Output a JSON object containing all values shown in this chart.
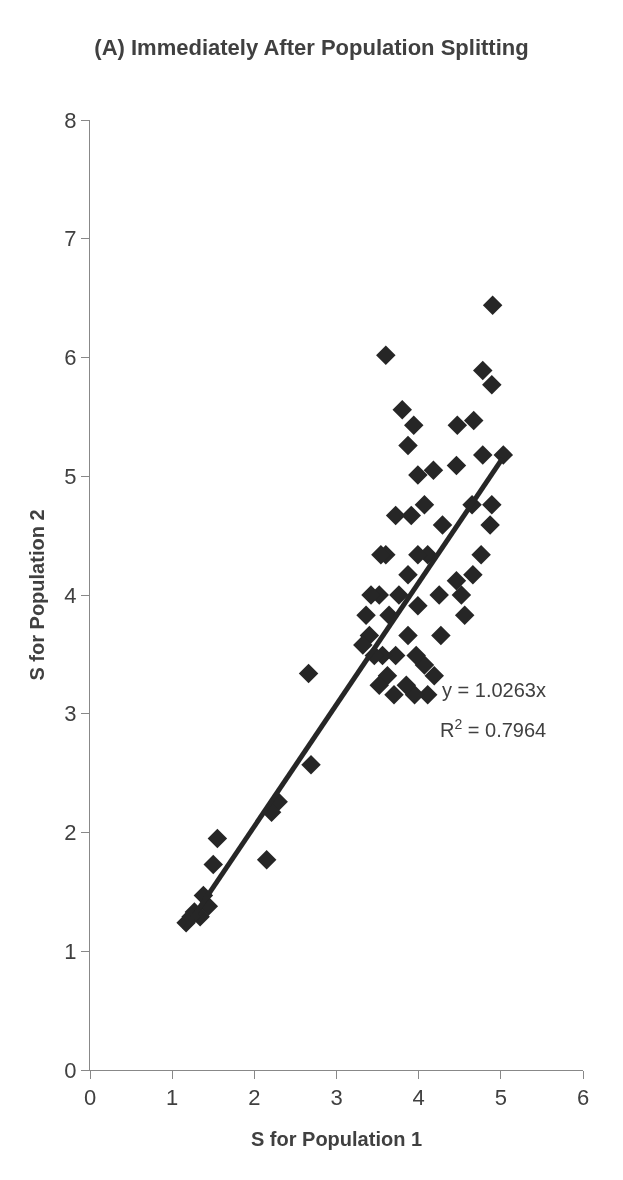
{
  "chart_data": {
    "type": "scatter",
    "title": "(A) Immediately After Population Splitting",
    "xlabel": "S for Population 1",
    "ylabel": "S for Population 2",
    "series": [
      {
        "color": "#262626",
        "marker": "diamond",
        "x": [
          4.9,
          4.89,
          5.03,
          4.78,
          4.78,
          4.89,
          4.87,
          4.76,
          4.67,
          4.65,
          4.66,
          4.56,
          4.47,
          4.46,
          4.46,
          4.52,
          4.29,
          4.25,
          4.27,
          4.18,
          4.19,
          4.11,
          4.07,
          4.11,
          4.07,
          3.94,
          3.99,
          3.99,
          3.99,
          3.97,
          3.95,
          3.8,
          3.87,
          3.91,
          3.87,
          3.87,
          3.85,
          3.72,
          3.76,
          3.72,
          3.7,
          3.6,
          3.6,
          3.64,
          3.62,
          3.54,
          3.52,
          3.56,
          3.52,
          3.42,
          3.4,
          3.46,
          3.36,
          3.32,
          2.66,
          2.69,
          2.29,
          2.21,
          2.15,
          1.55,
          1.5,
          1.44,
          1.38,
          1.34,
          1.27,
          1.17,
          1.23
        ],
        "values": [
          6.44,
          5.77,
          5.18,
          5.89,
          5.18,
          4.76,
          4.59,
          4.34,
          5.47,
          4.76,
          4.17,
          3.83,
          5.43,
          5.09,
          4.12,
          4.0,
          4.59,
          4.0,
          3.66,
          5.05,
          3.32,
          3.16,
          3.41,
          4.34,
          4.76,
          5.43,
          5.01,
          4.34,
          3.91,
          3.49,
          3.16,
          5.56,
          5.26,
          4.67,
          4.17,
          3.66,
          3.24,
          4.67,
          4.0,
          3.49,
          3.16,
          6.02,
          4.34,
          3.83,
          3.32,
          4.34,
          4.0,
          3.49,
          3.24,
          4.0,
          3.66,
          3.49,
          3.83,
          3.58,
          3.34,
          2.57,
          2.26,
          2.17,
          1.77,
          1.95,
          1.73,
          1.38,
          1.47,
          1.29,
          1.33,
          1.24,
          1.29
        ]
      },
      {
        "type": "line",
        "color": "#262626",
        "x": [
          1.15,
          5.02
        ],
        "values": [
          1.18,
          5.15
        ]
      }
    ],
    "xlim": [
      0,
      6
    ],
    "xticks": [
      0,
      1,
      2,
      3,
      4,
      5,
      6
    ],
    "ylim": [
      0,
      8
    ],
    "yticks": [
      0,
      1,
      2,
      3,
      4,
      5,
      6,
      7,
      8
    ],
    "annotations": [
      "y = 1.0263x",
      "R$^{2}$ = 0.7964"
    ]
  }
}
